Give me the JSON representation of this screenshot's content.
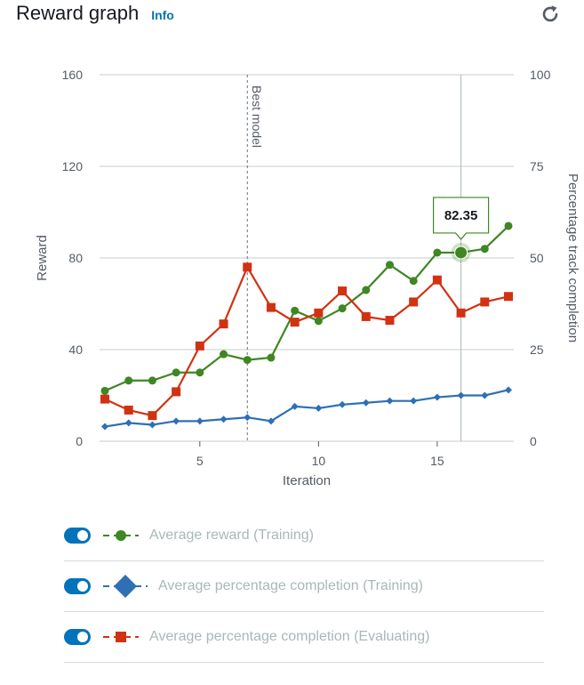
{
  "header": {
    "title": "Reward graph",
    "info_label": "Info",
    "refresh_icon": "refresh-icon"
  },
  "colors": {
    "reward_training": "#3f8624",
    "completion_training": "#2e6fb5",
    "completion_evaluating": "#d13212",
    "toggle_on": "#0073bb",
    "legend_text_disabled": "#aab7b8"
  },
  "chart_data": {
    "type": "line",
    "xlabel": "Iteration",
    "ylabel": "Reward",
    "y2label": "Percentage track completion",
    "xlim": [
      1,
      18
    ],
    "ylim": [
      0,
      160
    ],
    "y2lim": [
      0,
      100
    ],
    "xticks": [
      5,
      10,
      15
    ],
    "yticks": [
      0,
      40,
      80,
      120,
      160
    ],
    "y2ticks": [
      0,
      25,
      50,
      75,
      100
    ],
    "grid": true,
    "x": [
      1,
      2,
      3,
      4,
      5,
      6,
      7,
      8,
      9,
      10,
      11,
      12,
      13,
      14,
      15,
      16,
      17,
      18
    ],
    "series": [
      {
        "name": "Average reward (Training)",
        "axis": "left",
        "marker": "circle",
        "color": "#3f8624",
        "values": [
          22,
          26.5,
          26.5,
          30,
          30,
          38,
          35.5,
          36.5,
          57,
          52.5,
          58,
          66,
          77,
          70,
          82.35,
          82.35,
          84,
          94
        ]
      },
      {
        "name": "Average percentage completion (Training)",
        "axis": "right",
        "marker": "diamond",
        "color": "#2e6fb5",
        "values": [
          4,
          5,
          4.5,
          5.5,
          5.5,
          6,
          6.5,
          5.5,
          9.5,
          9,
          10,
          10.5,
          11,
          11,
          12,
          12.5,
          12.5,
          14
        ]
      },
      {
        "name": "Average percentage completion (Evaluating)",
        "axis": "right",
        "marker": "square",
        "color": "#d13212",
        "values": [
          11.5,
          8.5,
          7,
          13.5,
          26,
          32,
          47.5,
          36.5,
          32.5,
          35,
          41,
          34,
          33,
          38,
          44,
          35,
          38,
          39.5
        ]
      }
    ],
    "annotations": [
      {
        "type": "vline",
        "x": 7,
        "label": "Best model"
      },
      {
        "type": "tooltip",
        "x": 16,
        "series": 0,
        "label": "82.35"
      }
    ]
  },
  "legend": {
    "items": [
      {
        "label": "Average reward (Training)",
        "marker": "circle",
        "color": "#3f8624",
        "enabled": true
      },
      {
        "label": "Average percentage completion (Training)",
        "marker": "diamond",
        "color": "#2e6fb5",
        "enabled": true
      },
      {
        "label": "Average percentage completion (Evaluating)",
        "marker": "square",
        "color": "#d13212",
        "enabled": true
      }
    ]
  }
}
